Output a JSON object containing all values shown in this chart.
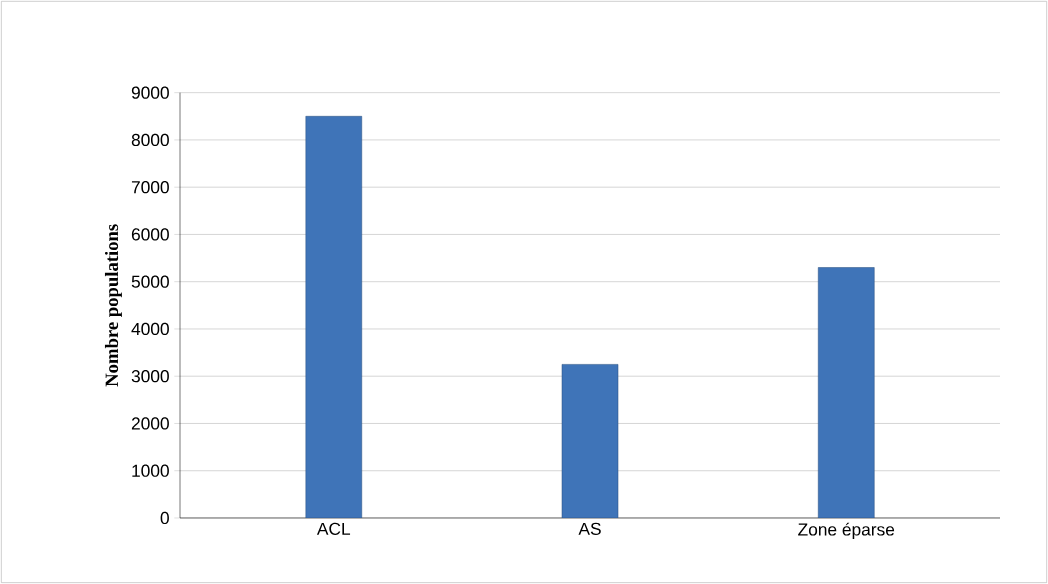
{
  "chart_data": {
    "type": "bar",
    "ylabel": "Nombre populations",
    "categories": [
      "ACL",
      "AS",
      "Zone éparse"
    ],
    "values": [
      8500,
      3250,
      5300
    ],
    "color": "#3f74b8",
    "ylim": [
      0,
      9000
    ],
    "yticks": [
      0,
      1000,
      2000,
      3000,
      4000,
      5000,
      6000,
      7000,
      8000,
      9000
    ],
    "grid": "y"
  }
}
